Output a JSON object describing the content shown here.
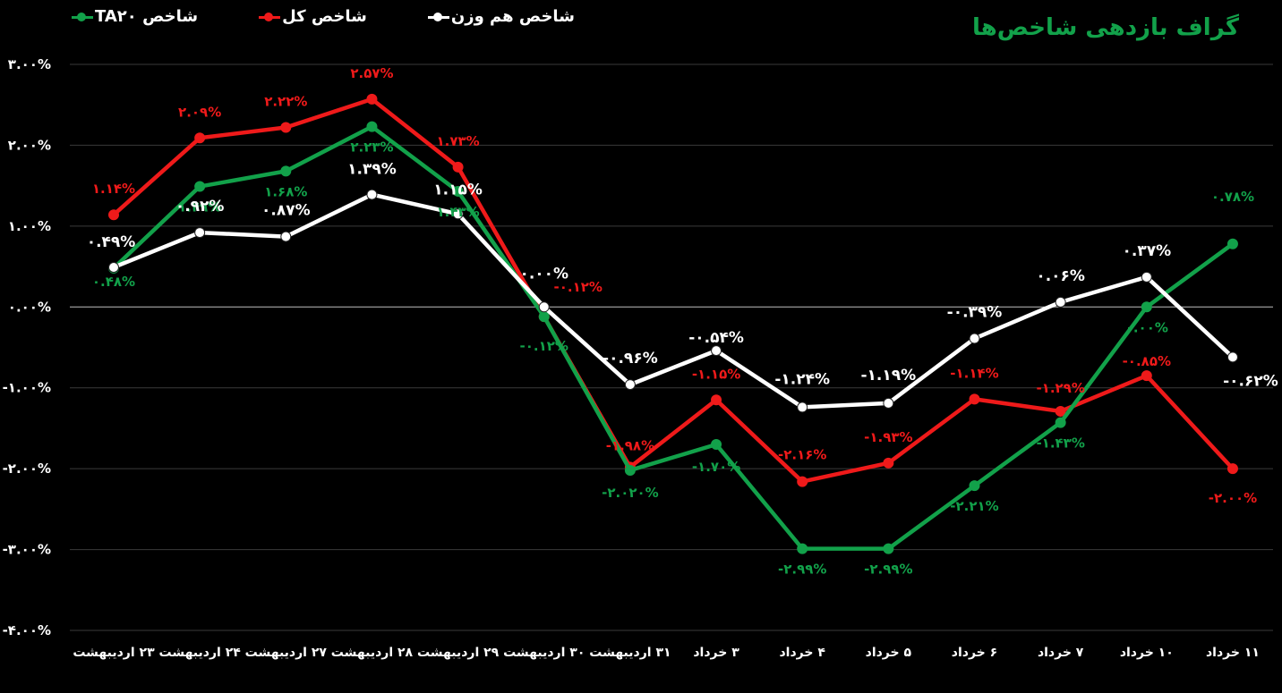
{
  "chart_data": {
    "type": "line",
    "title": "گراف بازدهی شاخص‌ها",
    "categories": [
      "۲۳ اردیبهشت",
      "۲۴ اردیبهشت",
      "۲۷ اردیبهشت",
      "۲۸ اردیبهشت",
      "۲۹ اردیبهشت",
      "۳۰ اردیبهشت",
      "۳۱ اردیبهشت",
      "۳ خرداد",
      "۴ خرداد",
      "۵ خرداد",
      "۶ خرداد",
      "۷ خرداد",
      "۱۰ خرداد",
      "۱۱ خرداد"
    ],
    "ylim": [
      -4,
      3
    ],
    "yticks": [
      3,
      2,
      1,
      0,
      -1,
      -2,
      -3,
      -4
    ],
    "ytick_labels": [
      "۳.۰۰%",
      "۲.۰۰%",
      "۱.۰۰%",
      "۰.۰۰%",
      "-۱.۰۰%",
      "-۲.۰۰%",
      "-۳.۰۰%",
      "-۴.۰۰%"
    ],
    "grid": true,
    "legend_position": "top-left",
    "series": [
      {
        "name": "شاخص TA۲۰",
        "color": "#12a14a",
        "values": [
          0.48,
          1.49,
          1.68,
          2.23,
          1.43,
          -0.12,
          -2.02,
          -1.7,
          -2.99,
          -2.99,
          -2.21,
          -1.43,
          0.0,
          0.78
        ],
        "labels": [
          "۰.۴۸%",
          "۱.۴۹%",
          "۱.۶۸%",
          "۲.۲۳%",
          "۱.۴۳%",
          "-۰.۱۲%",
          "-۲.۰۲۰%",
          "-۱.۷۰%",
          "-۲.۹۹%",
          "-۲.۹۹%",
          "-۲.۲۱%",
          "-۱.۴۳%",
          "۰.۰۰%",
          "۰.۷۸%"
        ]
      },
      {
        "name": "شاخص کل",
        "color": "#ef1a1a",
        "values": [
          1.14,
          2.09,
          2.22,
          2.57,
          1.73,
          -0.12,
          -1.98,
          -1.15,
          -2.16,
          -1.93,
          -1.14,
          -1.29,
          -0.85,
          -2.0
        ],
        "labels": [
          "۱.۱۴%",
          "۲.۰۹%",
          "۲.۲۲%",
          "۲.۵۷%",
          "۱.۷۳%",
          "-۰.۱۲%",
          "-۱.۹۸%",
          "-۱.۱۵%",
          "-۲.۱۶%",
          "-۱.۹۳%",
          "-۱.۱۴%",
          "-۱.۲۹%",
          "-۰.۸۵%",
          "-۲.۰۰%"
        ]
      },
      {
        "name": "شاخص هم وزن",
        "color": "#ffffff",
        "values": [
          0.49,
          0.92,
          0.87,
          1.39,
          1.15,
          0.0,
          -0.96,
          -0.54,
          -1.24,
          -1.19,
          -0.39,
          0.06,
          0.37,
          -0.62
        ],
        "labels": [
          "۰.۴۹%",
          "۰.۹۲%",
          "۰.۸۷%",
          "۱.۳۹%",
          "۱.۱۵%",
          "۰.۰۰%",
          "-۰.۹۶%",
          "-۰.۵۴%",
          "-۱.۲۴%",
          "-۱.۱۹%",
          "-۰.۳۹%",
          "۰.۰۶%",
          "۰.۳۷%",
          "-۰.۶۲%"
        ]
      }
    ]
  }
}
